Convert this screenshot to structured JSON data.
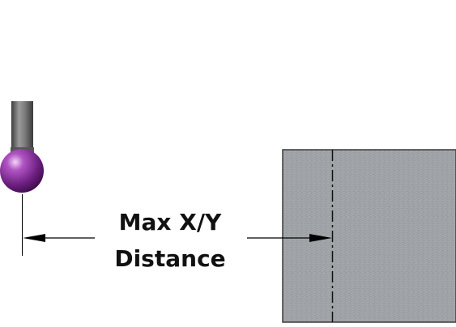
{
  "diagram": {
    "label_lines": [
      "Max X/Y",
      "Distance"
    ],
    "colors": {
      "stylus_shaft": "#6f6f6f",
      "probe_ball": "#7a2a8c",
      "workpiece": "#9a9ea2",
      "dimension_line": "#000000",
      "label_text": "#111111"
    }
  }
}
